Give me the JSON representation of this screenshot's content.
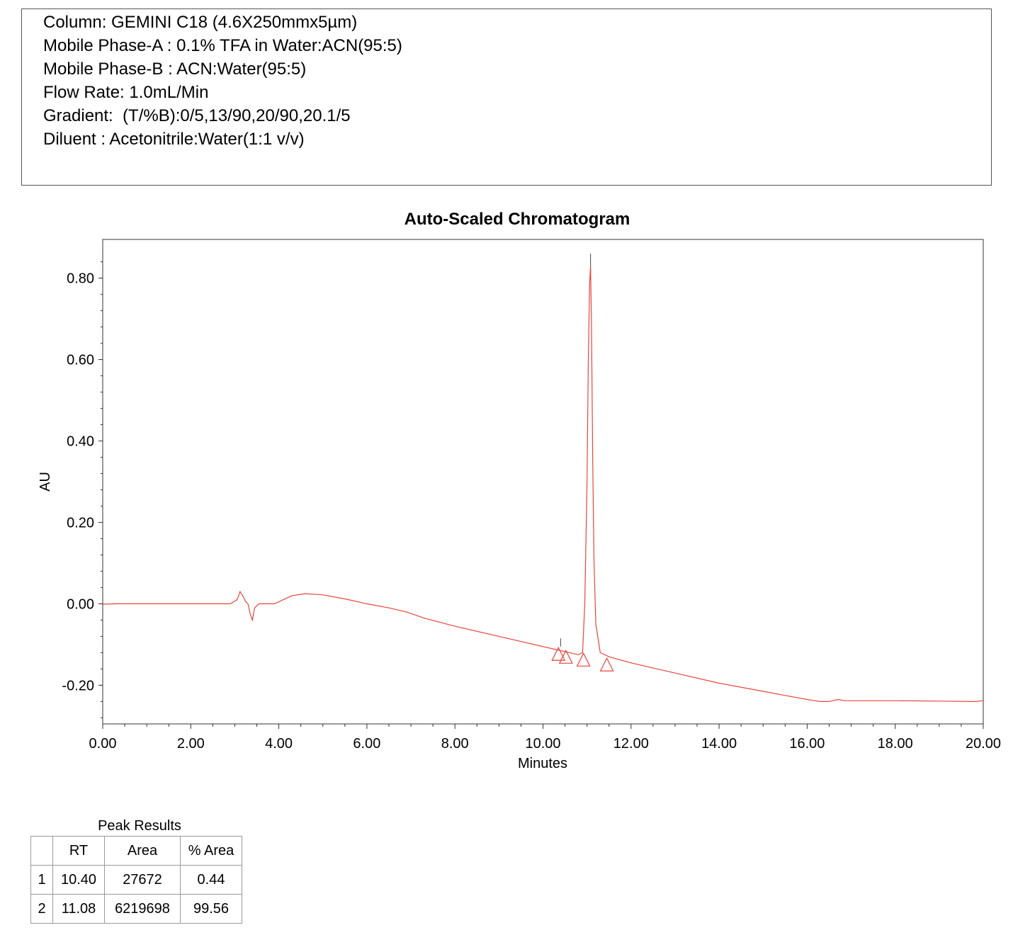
{
  "header": {
    "lines": [
      "Column: GEMINI C18 (4.6X250mmx5µm)",
      "Mobile Phase-A : 0.1% TFA in Water:ACN(95:5)",
      "Mobile Phase-B : ACN:Water(95:5)",
      "Flow Rate: 1.0mL/Min",
      "Gradient:  (T/%B):0/5,13/90,20/90,20.1/5",
      "Diluent : Acetonitrile:Water(1:1 v/v)"
    ]
  },
  "chart_data": {
    "type": "line",
    "title": "Auto-Scaled Chromatogram",
    "xlabel": "Minutes",
    "ylabel": "AU",
    "xlim": [
      0,
      20
    ],
    "ylim": [
      -0.295,
      0.895
    ],
    "x_ticks": [
      "0.00",
      "2.00",
      "4.00",
      "6.00",
      "8.00",
      "10.00",
      "12.00",
      "14.00",
      "16.00",
      "18.00",
      "20.00"
    ],
    "y_ticks": [
      "-0.20",
      "0.00",
      "0.20",
      "0.40",
      "0.60",
      "0.80"
    ],
    "line_color": "#e8453c",
    "series": [
      {
        "x": [
          0,
          0.3,
          1.0,
          2.0,
          2.9,
          3.05,
          3.12,
          3.18,
          3.25,
          3.3,
          3.35,
          3.4,
          3.45,
          3.55,
          3.7,
          3.9,
          4.1,
          4.3,
          4.6,
          5.0,
          5.5,
          6.0,
          6.5,
          6.9,
          7.3,
          8.0,
          9.0,
          10.0,
          10.4,
          10.8,
          10.9,
          10.95,
          11.0,
          11.03,
          11.06,
          11.08,
          11.1,
          11.13,
          11.16,
          11.2,
          11.3,
          11.5,
          12.0,
          13.0,
          14.0,
          15.0,
          15.5,
          16.0,
          16.3,
          16.5,
          16.7,
          16.85,
          17.0,
          18.0,
          19.0,
          19.8,
          20.0
        ],
        "y": [
          -0.001,
          0.0,
          0.0,
          0.0,
          0.0,
          0.01,
          0.03,
          0.02,
          0.005,
          0.0,
          -0.025,
          -0.04,
          -0.01,
          0.0,
          0.0,
          0.0,
          0.01,
          0.02,
          0.025,
          0.022,
          0.012,
          0.0,
          -0.01,
          -0.02,
          -0.035,
          -0.055,
          -0.08,
          -0.105,
          -0.115,
          -0.125,
          -0.12,
          0.0,
          0.3,
          0.6,
          0.79,
          0.83,
          0.7,
          0.35,
          0.1,
          -0.05,
          -0.12,
          -0.13,
          -0.145,
          -0.17,
          -0.195,
          -0.215,
          -0.225,
          -0.235,
          -0.24,
          -0.24,
          -0.235,
          -0.238,
          -0.238,
          -0.238,
          -0.239,
          -0.24,
          -0.238
        ]
      }
    ],
    "peak_markers": [
      {
        "x": 10.4,
        "y": -0.105,
        "tick_top": -0.085
      },
      {
        "x": 11.08,
        "y": 0.83,
        "tick_top": 0.86
      }
    ],
    "integration_markers": [
      {
        "x": 10.35,
        "y": -0.125
      },
      {
        "x": 10.52,
        "y": -0.132
      },
      {
        "x": 10.92,
        "y": -0.139
      },
      {
        "x": 11.45,
        "y": -0.151
      }
    ]
  },
  "peak_results": {
    "caption": "Peak Results",
    "headers": [
      "",
      "RT",
      "Area",
      "% Area"
    ],
    "rows": [
      [
        "1",
        "10.40",
        "27672",
        "0.44"
      ],
      [
        "2",
        "11.08",
        "6219698",
        "99.56"
      ]
    ]
  }
}
